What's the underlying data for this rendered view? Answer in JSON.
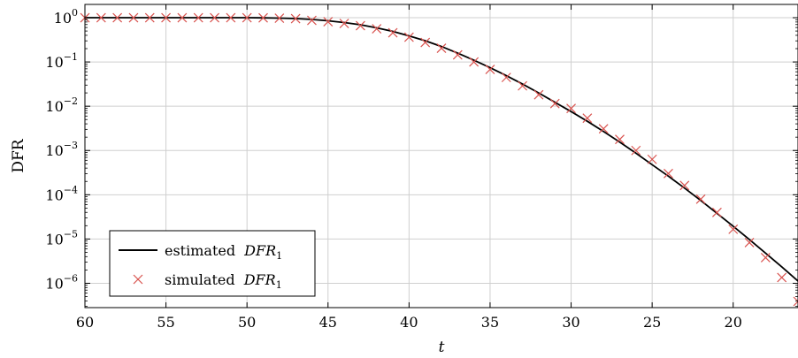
{
  "chart_data": {
    "type": "line",
    "xlabel": "t",
    "ylabel": "DFR",
    "x_reversed": true,
    "xlim": [
      60,
      16
    ],
    "ylim_log10": [
      -6.55,
      0.3
    ],
    "y_scale": "log",
    "grid": true,
    "legend_position": "bottom-left",
    "x_ticks": [
      {
        "value": 60,
        "label": "60"
      },
      {
        "value": 55,
        "label": "55"
      },
      {
        "value": 50,
        "label": "50"
      },
      {
        "value": 45,
        "label": "45"
      },
      {
        "value": 40,
        "label": "40"
      },
      {
        "value": 35,
        "label": "35"
      },
      {
        "value": 30,
        "label": "30"
      },
      {
        "value": 25,
        "label": "25"
      },
      {
        "value": 20,
        "label": "20"
      }
    ],
    "y_ticks": [
      {
        "exp": 0,
        "base": "10",
        "sup": "0"
      },
      {
        "exp": -1,
        "base": "10",
        "sup": "−1"
      },
      {
        "exp": -2,
        "base": "10",
        "sup": "−2"
      },
      {
        "exp": -3,
        "base": "10",
        "sup": "−3"
      },
      {
        "exp": -4,
        "base": "10",
        "sup": "−4"
      },
      {
        "exp": -5,
        "base": "10",
        "sup": "−5"
      },
      {
        "exp": -6,
        "base": "10",
        "sup": "−6"
      }
    ],
    "series": [
      {
        "name": "estimated",
        "name_math": "DFR",
        "name_sub": "1",
        "kind": "line",
        "color": "#000000",
        "x": [
          60,
          59,
          58,
          57,
          56,
          55,
          54,
          53,
          52,
          51,
          50,
          49,
          48,
          47,
          46,
          45,
          44,
          43,
          42,
          41,
          40,
          39,
          38,
          37,
          36,
          35,
          34,
          33,
          32,
          31,
          30,
          29,
          28,
          27,
          26,
          25,
          24,
          23,
          22,
          21,
          20,
          19,
          18,
          17,
          16
        ],
        "log10_y": [
          0,
          0,
          0,
          0,
          0,
          0,
          0,
          0,
          0,
          0,
          0,
          -0.003,
          -0.01,
          -0.02,
          -0.04,
          -0.07,
          -0.11,
          -0.16,
          -0.23,
          -0.31,
          -0.41,
          -0.52,
          -0.65,
          -0.8,
          -0.96,
          -1.13,
          -1.31,
          -1.5,
          -1.7,
          -1.91,
          -2.12,
          -2.34,
          -2.57,
          -2.81,
          -3.06,
          -3.32,
          -3.58,
          -3.85,
          -4.13,
          -4.42,
          -4.71,
          -5.01,
          -5.32,
          -5.63,
          -5.95
        ]
      },
      {
        "name": "simulated",
        "name_math": "DFR",
        "name_sub": "1",
        "kind": "scatter",
        "marker": "x",
        "color": "#d9534f",
        "x": [
          60,
          59,
          58,
          57,
          56,
          55,
          54,
          53,
          52,
          51,
          50,
          49,
          48,
          47,
          46,
          45,
          44,
          43,
          42,
          41,
          40,
          39,
          38,
          37,
          36,
          35,
          34,
          33,
          32,
          31,
          30,
          29,
          28,
          27,
          26,
          25,
          24,
          23,
          22,
          21,
          20,
          19,
          18,
          17,
          16
        ],
        "log10_y": [
          0,
          0,
          0,
          0,
          0,
          0,
          0,
          0,
          0,
          0,
          0,
          -0.003,
          -0.01,
          -0.02,
          -0.06,
          -0.09,
          -0.13,
          -0.18,
          -0.25,
          -0.34,
          -0.44,
          -0.56,
          -0.69,
          -0.84,
          -1.0,
          -1.17,
          -1.35,
          -1.54,
          -1.74,
          -1.94,
          -2.05,
          -2.27,
          -2.51,
          -2.75,
          -3.0,
          -3.2,
          -3.52,
          -3.79,
          -4.1,
          -4.4,
          -4.78,
          -5.08,
          -5.42,
          -5.87,
          -6.41
        ]
      }
    ]
  }
}
